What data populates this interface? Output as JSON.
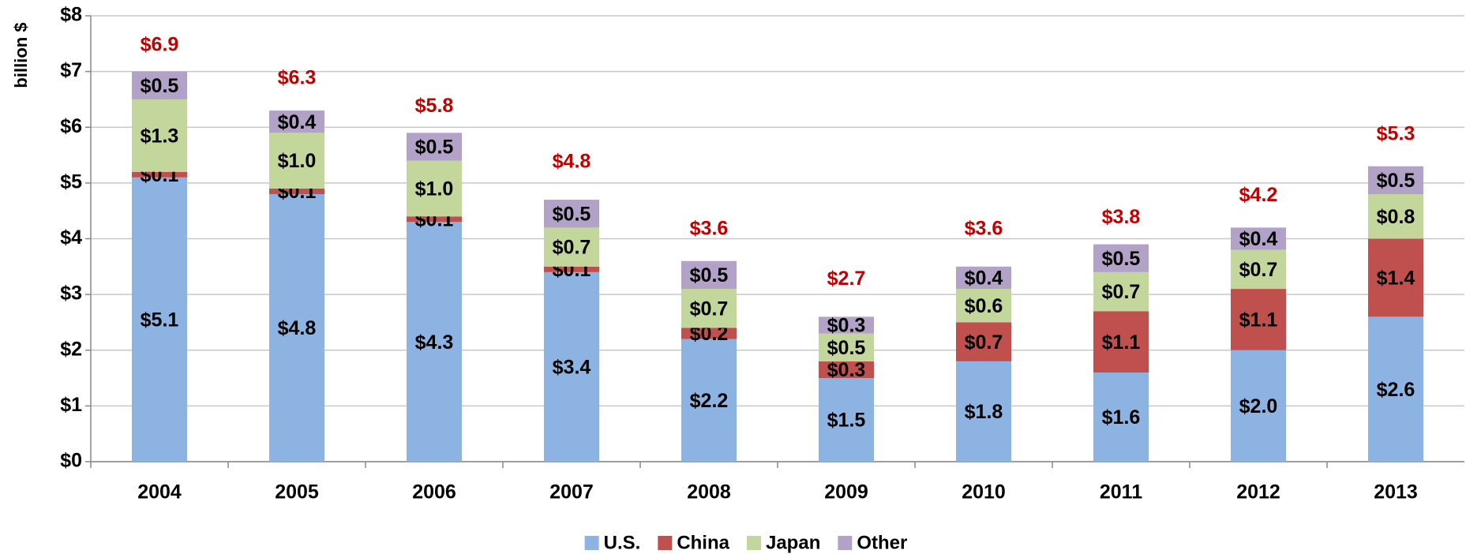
{
  "chart_data": {
    "type": "stacked-bar",
    "y_label": "billion $",
    "categories": [
      "2004",
      "2005",
      "2006",
      "2007",
      "2008",
      "2009",
      "2010",
      "2011",
      "2012",
      "2013"
    ],
    "series": [
      {
        "name": "U.S.",
        "color": "#8db3e2",
        "values": [
          5.1,
          4.8,
          4.3,
          3.4,
          2.2,
          1.5,
          1.8,
          1.6,
          2.0,
          2.6
        ],
        "value_labels": [
          "$5.1",
          "$4.8",
          "$4.3",
          "$3.4",
          "$2.2",
          "$1.5",
          "$1.8",
          "$1.6",
          "$2.0",
          "$2.6"
        ]
      },
      {
        "name": "China",
        "color": "#c0504d",
        "values": [
          0.1,
          0.1,
          0.1,
          0.1,
          0.2,
          0.3,
          0.7,
          1.1,
          1.1,
          1.4
        ],
        "value_labels": [
          "$0.1",
          "$0.1",
          "$0.1",
          "$0.1",
          "$0.2",
          "$0.3",
          "$0.7",
          "$1.1",
          "$1.1",
          "$1.4"
        ]
      },
      {
        "name": "Japan",
        "color": "#c3d69b",
        "values": [
          1.3,
          1.0,
          1.0,
          0.7,
          0.7,
          0.5,
          0.6,
          0.7,
          0.7,
          0.8
        ],
        "value_labels": [
          "$1.3",
          "$1.0",
          "$1.0",
          "$0.7",
          "$0.7",
          "$0.5",
          "$0.6",
          "$0.7",
          "$0.7",
          "$0.8"
        ]
      },
      {
        "name": "Other",
        "color": "#b3a2c7",
        "values": [
          0.5,
          0.4,
          0.5,
          0.5,
          0.5,
          0.3,
          0.4,
          0.5,
          0.4,
          0.5
        ],
        "value_labels": [
          "$0.5",
          "$0.4",
          "$0.5",
          "$0.5",
          "$0.5",
          "$0.3",
          "$0.4",
          "$0.5",
          "$0.4",
          "$0.5"
        ]
      }
    ],
    "totals": {
      "color": "#c00000",
      "values": [
        6.9,
        6.3,
        5.8,
        4.8,
        3.6,
        2.7,
        3.6,
        3.8,
        4.2,
        5.3
      ],
      "value_labels": [
        "$6.9",
        "$6.3",
        "$5.8",
        "$4.8",
        "$3.6",
        "$2.7",
        "$3.6",
        "$3.8",
        "$4.2",
        "$5.3"
      ]
    },
    "ylim": [
      0,
      8
    ],
    "yticks": [
      {
        "value": 0,
        "label": "$0"
      },
      {
        "value": 1,
        "label": "$1"
      },
      {
        "value": 2,
        "label": "$2"
      },
      {
        "value": 3,
        "label": "$3"
      },
      {
        "value": 4,
        "label": "$4"
      },
      {
        "value": 5,
        "label": "$5"
      },
      {
        "value": 6,
        "label": "$6"
      },
      {
        "value": 7,
        "label": "$7"
      },
      {
        "value": 8,
        "label": "$8"
      }
    ],
    "grid": true,
    "legend": "bottom"
  }
}
